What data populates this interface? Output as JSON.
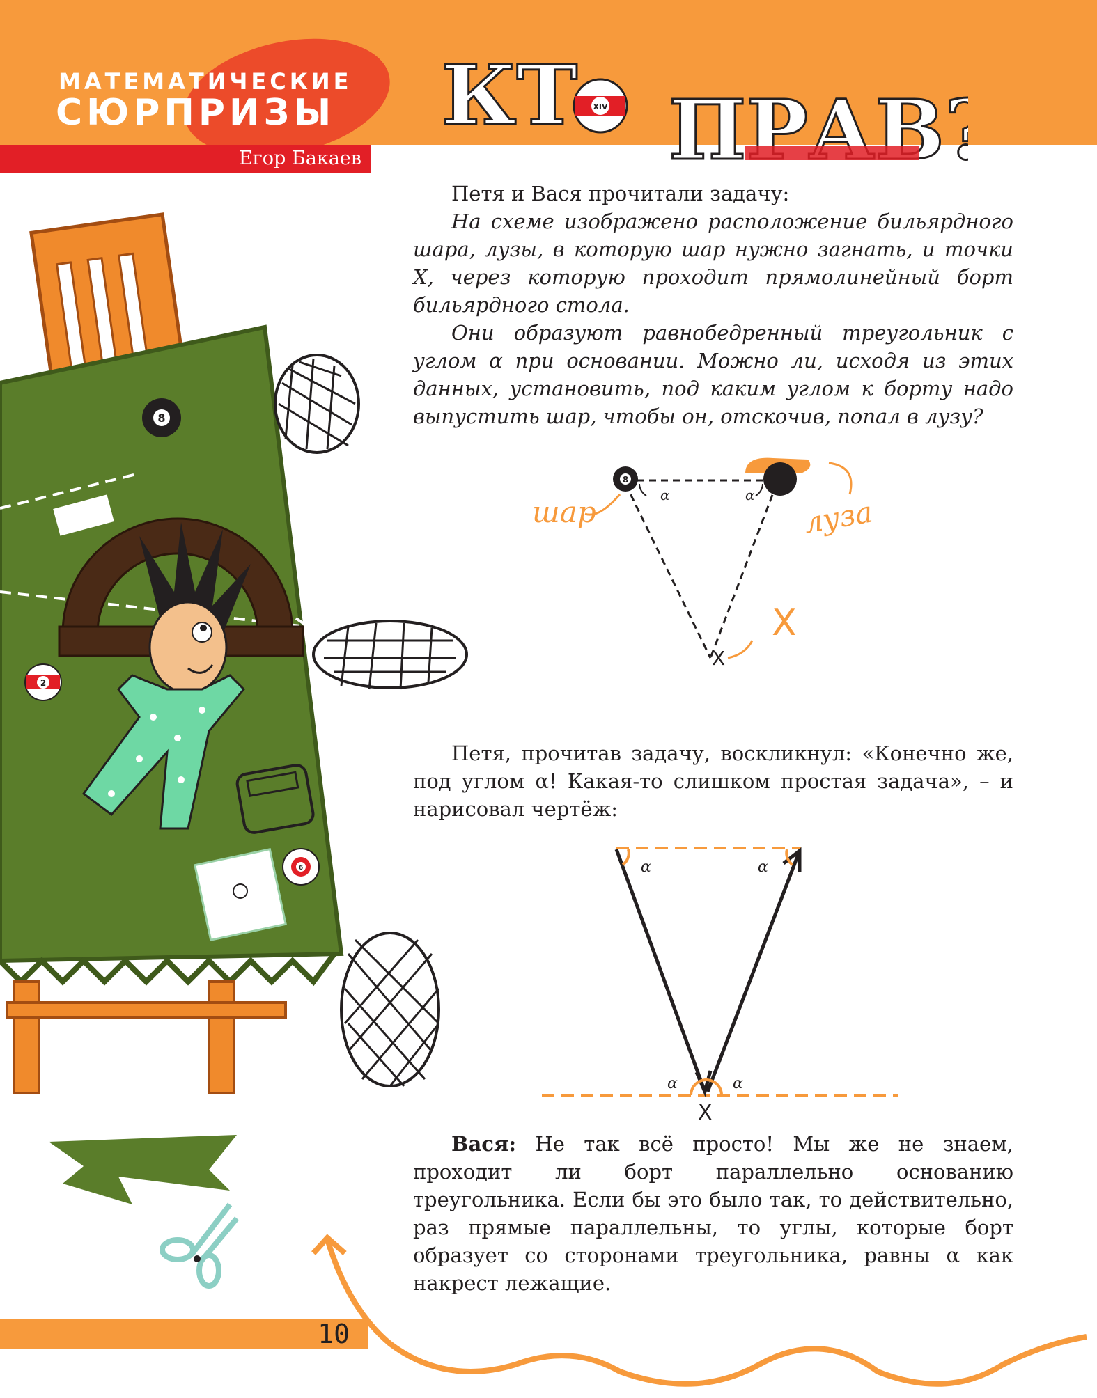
{
  "rubric": {
    "line1": "МАТЕМАТИЧЕСКИЕ",
    "line2": "СЮРПРИЗЫ",
    "author": "Егор Бакаев"
  },
  "title": {
    "part1": "КТ",
    "ball_label": "XIV",
    "part2": "ПРАВ?"
  },
  "intro": {
    "lead": "Петя и Вася прочитали задачу:",
    "problem_p1": "На схеме изображено расположение бильярдного шара, лузы, в которую шар нужно загнать, и точки X, через которую проходит прямолинейный борт бильярдного стола.",
    "problem_p2": "Они образуют равнобедренный треугольник с углом α при основании. Можно ли, исходя из этих данных, установить, под каким углом к борту надо выпустить шар, чтобы он, отскочив, попал в лузу?"
  },
  "diagram1": {
    "ball_label": "шар",
    "pocket_label": "луза",
    "ball_number": "8",
    "angle_label": "α",
    "point_label": "X"
  },
  "petya": {
    "text": "Петя, прочитав задачу, воскликнул: «Конечно же, под углом α! Какая-то слишком простая задача», – и нарисовал чертёж:"
  },
  "diagram2": {
    "angle_label": "α",
    "point_label": "X"
  },
  "vasya": {
    "speaker": "Вася:",
    "text": " Не так всё просто! Мы же не знаем, проходит ли борт параллельно основанию треугольника. Если бы это было так, то действительно, раз прямые параллельны, то углы, которые борт образует со сторонами треугольника, равны α как накрест лежащие."
  },
  "illustration": {
    "ball_numbers": [
      "8",
      "2",
      "6"
    ],
    "table_color": "#5a7d2a"
  },
  "page": {
    "number": "10"
  },
  "colors": {
    "orange": "#f79a3c",
    "red": "#e21f26",
    "dark": "#231f20",
    "felt": "#5a7d2a"
  }
}
